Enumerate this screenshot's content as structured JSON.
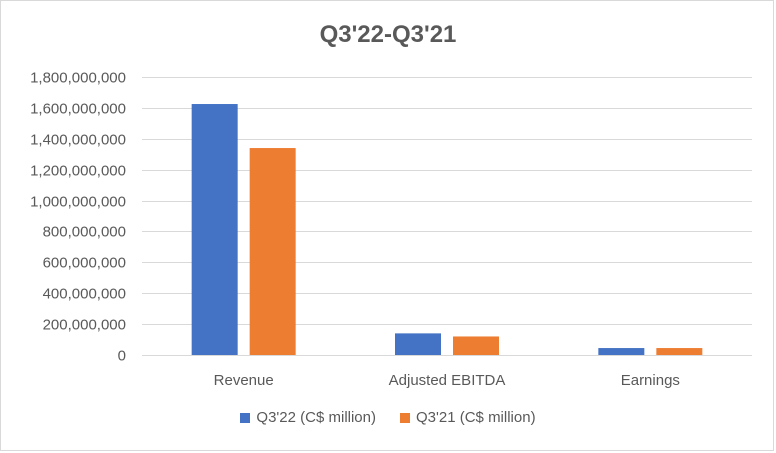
{
  "chart_data": {
    "type": "bar",
    "title": "Q3'22-Q3'21",
    "xlabel": "",
    "ylabel": "",
    "categories": [
      "Revenue",
      "Adjusted EBITDA",
      "Earnings"
    ],
    "series": [
      {
        "name": "Q3'22 (C$ million)",
        "color": "#4472c4",
        "values": [
          1625000000,
          140000000,
          45000000
        ]
      },
      {
        "name": "Q3'21 (C$ million)",
        "color": "#ed7d31",
        "values": [
          1340000000,
          120000000,
          45000000
        ]
      }
    ],
    "ylim": [
      0,
      1800000000
    ],
    "yticks": [
      0,
      200000000,
      400000000,
      600000000,
      800000000,
      1000000000,
      1200000000,
      1400000000,
      1600000000,
      1800000000
    ],
    "ytick_labels": [
      "0",
      "200,000,000",
      "400,000,000",
      "600,000,000",
      "800,000,000",
      "1,000,000,000",
      "1,200,000,000",
      "1,400,000,000",
      "1,600,000,000",
      "1,800,000,000"
    ],
    "grid": true,
    "legend_position": "bottom"
  }
}
